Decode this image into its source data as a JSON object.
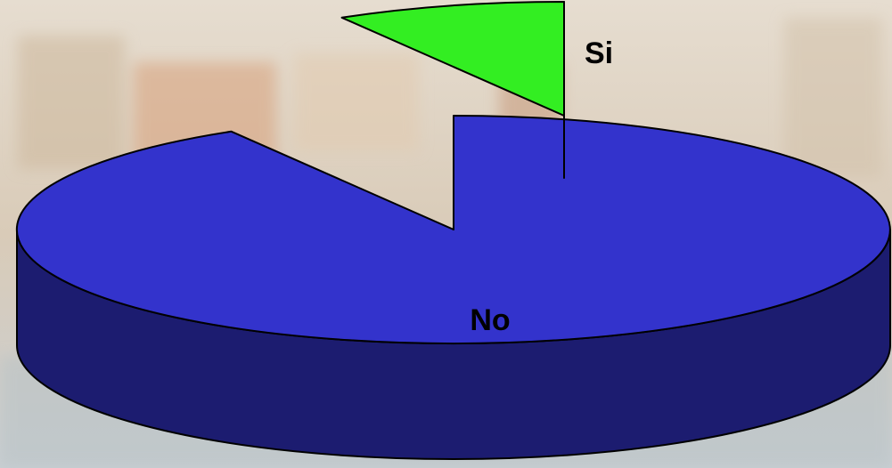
{
  "chart_data": {
    "type": "pie",
    "categories": [
      "No",
      "Si"
    ],
    "values": [
      91.5,
      8.5
    ],
    "colors": [
      "#3333cc",
      "#33ee22"
    ],
    "explode": [
      false,
      true
    ]
  }
}
